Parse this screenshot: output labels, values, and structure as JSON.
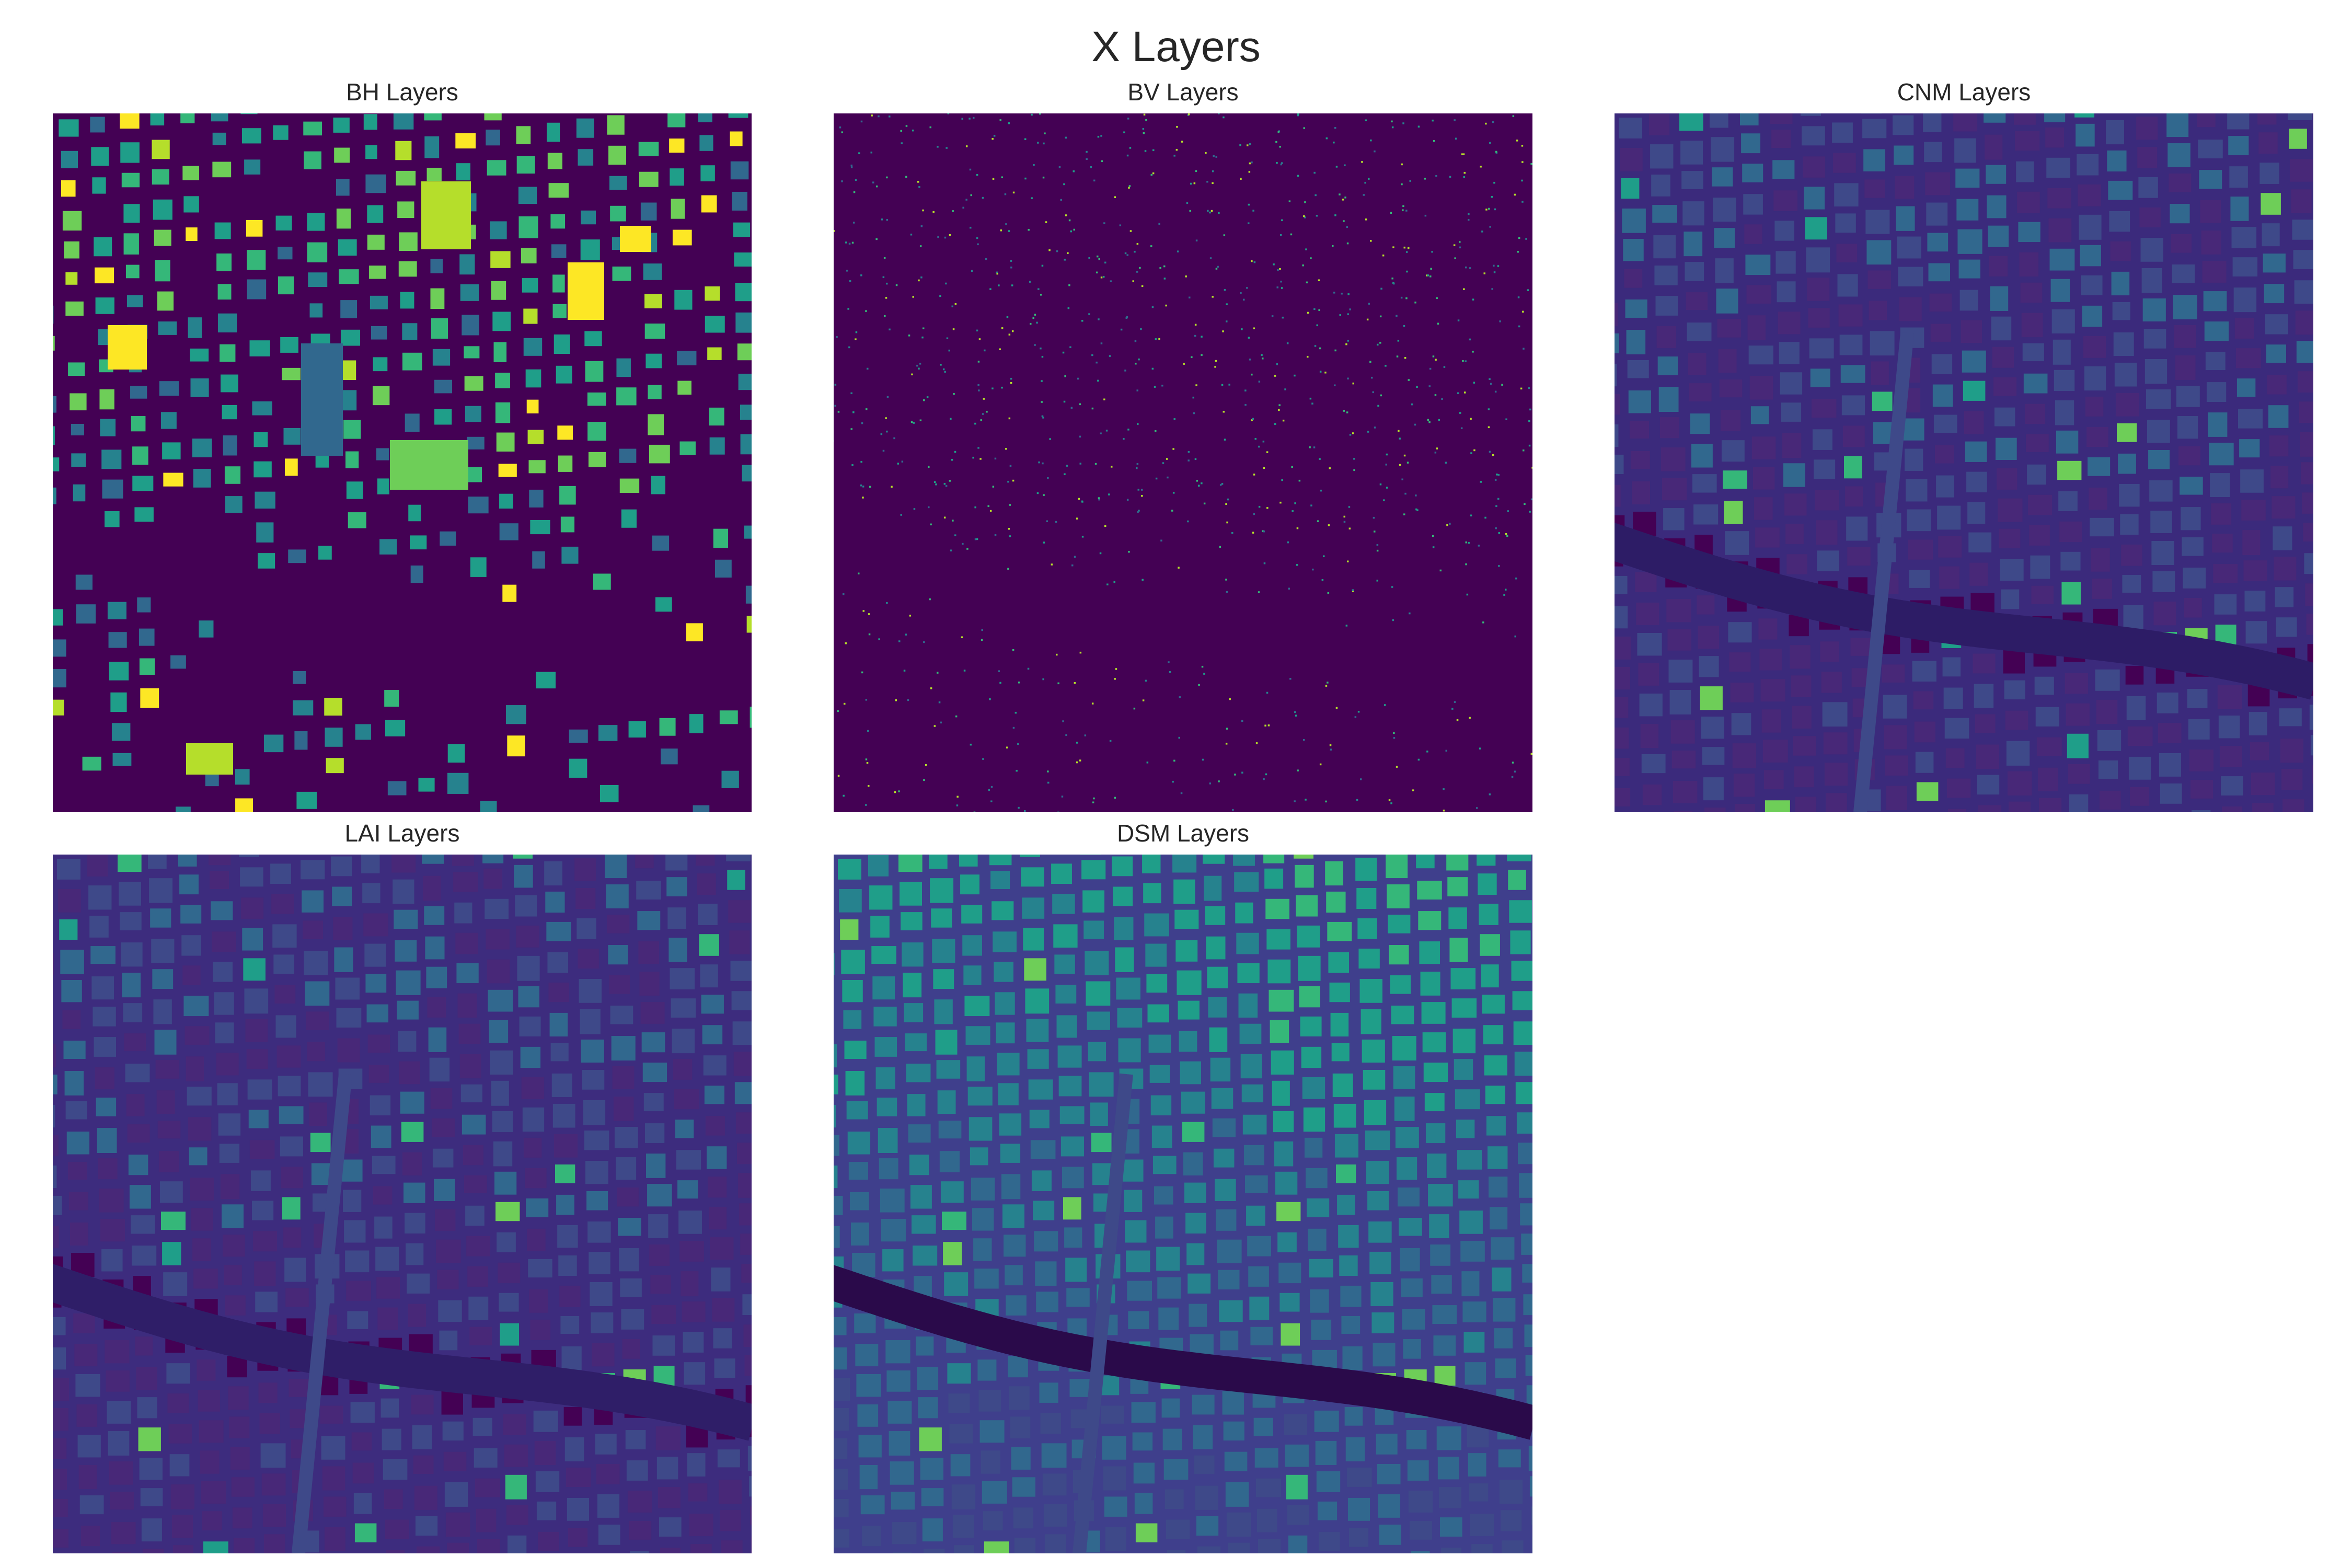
{
  "figure": {
    "title": "X Layers"
  },
  "panels": [
    {
      "id": "bh",
      "title": "BH Layers",
      "colormap": "viridis",
      "background": "#440154",
      "style": "buildings"
    },
    {
      "id": "bv",
      "title": "BV Layers",
      "colormap": "viridis",
      "background": "#440154",
      "style": "points"
    },
    {
      "id": "cnm",
      "title": "CNM Layers",
      "colormap": "viridis",
      "background": "#3b2a7c",
      "style": "blocks"
    },
    {
      "id": "lai",
      "title": "LAI Layers",
      "colormap": "viridis",
      "background": "#3d2c7e",
      "style": "blocks"
    },
    {
      "id": "dsm",
      "title": "DSM Layers",
      "colormap": "viridis",
      "background": "#3f3f8c",
      "style": "dsm"
    }
  ]
}
